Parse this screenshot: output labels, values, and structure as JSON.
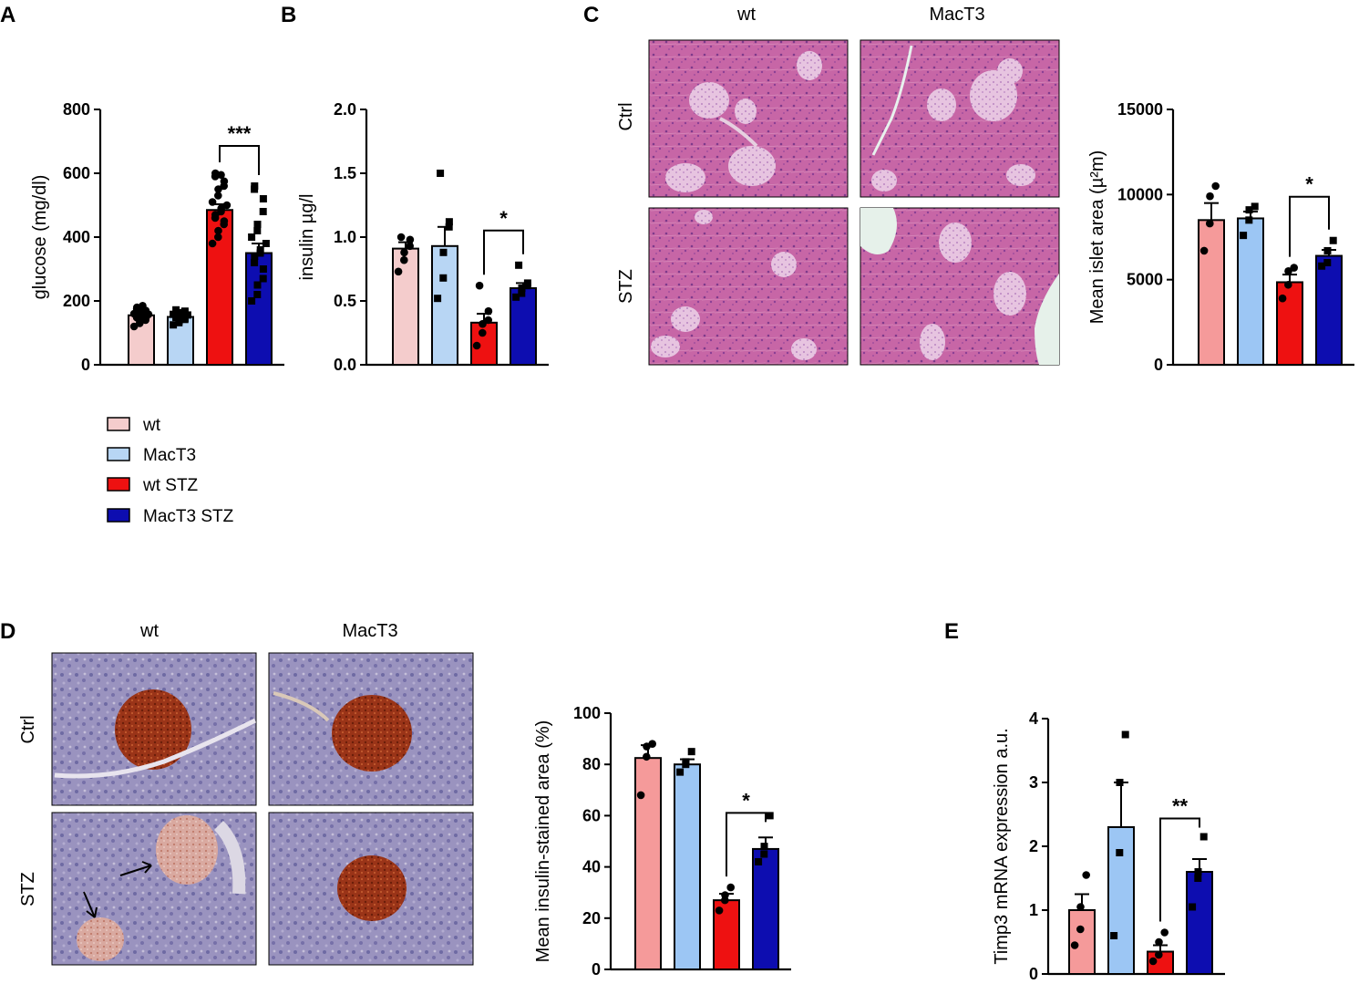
{
  "panels": {
    "A": {
      "letter": "A"
    },
    "B": {
      "letter": "B"
    },
    "C": {
      "letter": "C",
      "col_headers": [
        "wt",
        "MacT3"
      ],
      "row_headers": [
        "Ctrl",
        "STZ"
      ]
    },
    "D": {
      "letter": "D",
      "col_headers": [
        "wt",
        "MacT3"
      ],
      "row_headers": [
        "Ctrl",
        "STZ"
      ]
    },
    "E": {
      "letter": "E"
    }
  },
  "legend": {
    "items": [
      {
        "label": "wt",
        "color": "#f4cccc"
      },
      {
        "label": "MacT3",
        "color": "#b8d6f4"
      },
      {
        "label": "wt STZ",
        "color": "#ee1111"
      },
      {
        "label": "MacT3 STZ",
        "color": "#0d0db0"
      }
    ]
  },
  "colors": {
    "tissue_he": "#c86aa8",
    "tissue_ihc": "#8c84b4",
    "ihc_islet": "#9c3a1e"
  },
  "chart_data": [
    {
      "id": "A",
      "type": "bar",
      "ylabel": "glucose (mg/dl)",
      "ylim": [
        0,
        800
      ],
      "yticks": [
        0,
        200,
        400,
        600,
        800
      ],
      "tick_labels": [
        "0",
        "200",
        "400",
        "600",
        "800"
      ],
      "bars": [
        {
          "group": "wt",
          "value": 155,
          "sem": 5,
          "color": "#f4cccc",
          "marker": "circle",
          "points": [
            120,
            130,
            135,
            140,
            145,
            148,
            150,
            152,
            155,
            158,
            160,
            162,
            165,
            168,
            170,
            175,
            180,
            185
          ]
        },
        {
          "group": "MacT3",
          "value": 150,
          "sem": 5,
          "color": "#b8d6f4",
          "marker": "square",
          "points": [
            125,
            132,
            138,
            142,
            145,
            148,
            150,
            152,
            154,
            156,
            158,
            160,
            163,
            165,
            168,
            172
          ]
        },
        {
          "group": "wt STZ",
          "value": 485,
          "sem": 18,
          "color": "#ee1111",
          "marker": "circle",
          "points": [
            380,
            400,
            420,
            440,
            450,
            460,
            470,
            480,
            490,
            500,
            510,
            530,
            550,
            560,
            575,
            590,
            600,
            595
          ]
        },
        {
          "group": "MacT3 STZ",
          "value": 350,
          "sem": 30,
          "color": "#0d0db0",
          "marker": "square",
          "points": [
            200,
            220,
            250,
            270,
            300,
            320,
            340,
            350,
            360,
            380,
            400,
            420,
            440,
            480,
            520,
            550,
            560
          ]
        }
      ],
      "significance": {
        "between": [
          2,
          3
        ],
        "label": "***"
      }
    },
    {
      "id": "B",
      "type": "bar",
      "ylabel": "insulin µg/l",
      "ylim": [
        0,
        2.0
      ],
      "yticks": [
        0,
        0.5,
        1.0,
        1.5,
        2.0
      ],
      "tick_labels": [
        "0.0",
        "0.5",
        "1.0",
        "1.5",
        "2.0"
      ],
      "bars": [
        {
          "group": "wt",
          "value": 0.91,
          "sem": 0.05,
          "color": "#f4cccc",
          "marker": "circle",
          "points": [
            0.73,
            0.82,
            0.88,
            0.93,
            0.98,
            1.0
          ]
        },
        {
          "group": "MacT3",
          "value": 0.93,
          "sem": 0.15,
          "color": "#b8d6f4",
          "marker": "square",
          "points": [
            0.52,
            0.68,
            0.88,
            1.08,
            1.12,
            1.5
          ]
        },
        {
          "group": "wt STZ",
          "value": 0.33,
          "sem": 0.07,
          "color": "#ee1111",
          "marker": "circle",
          "points": [
            0.15,
            0.25,
            0.32,
            0.35,
            0.42,
            0.62
          ]
        },
        {
          "group": "MacT3 STZ",
          "value": 0.6,
          "sem": 0.04,
          "color": "#0d0db0",
          "marker": "square",
          "points": [
            0.53,
            0.56,
            0.6,
            0.62,
            0.64,
            0.78
          ]
        }
      ],
      "significance": {
        "between": [
          2,
          3
        ],
        "label": "*"
      }
    },
    {
      "id": "C",
      "type": "bar",
      "ylabel": "Mean islet area (µ²m)",
      "ylim": [
        0,
        15000
      ],
      "yticks": [
        0,
        5000,
        10000,
        15000
      ],
      "tick_labels": [
        "0",
        "5000",
        "10000",
        "15000"
      ],
      "bars": [
        {
          "group": "wt",
          "value": 8500,
          "sem": 1000,
          "color": "#f59a9a",
          "marker": "circle",
          "points": [
            6700,
            8300,
            9900,
            10500
          ]
        },
        {
          "group": "MacT3",
          "value": 8600,
          "sem": 400,
          "color": "#9cc6f4",
          "marker": "square",
          "points": [
            7600,
            8500,
            9100,
            9300
          ]
        },
        {
          "group": "wt STZ",
          "value": 4850,
          "sem": 450,
          "color": "#ee1111",
          "marker": "circle",
          "points": [
            3900,
            4700,
            5500,
            5700
          ]
        },
        {
          "group": "MacT3 STZ",
          "value": 6400,
          "sem": 350,
          "color": "#0d0db0",
          "marker": "square",
          "points": [
            5800,
            6000,
            6700,
            7300
          ]
        }
      ],
      "significance": {
        "between": [
          2,
          3
        ],
        "label": "*"
      }
    },
    {
      "id": "D",
      "type": "bar",
      "ylabel": "Mean insulin-stained area (%)",
      "ylim": [
        0,
        100
      ],
      "yticks": [
        0,
        20,
        40,
        60,
        80,
        100
      ],
      "tick_labels": [
        "0",
        "20",
        "40",
        "60",
        "80",
        "100"
      ],
      "bars": [
        {
          "group": "wt",
          "value": 82.5,
          "sem": 5,
          "color": "#f59a9a",
          "marker": "circle",
          "points": [
            68,
            83,
            87,
            88
          ]
        },
        {
          "group": "MacT3",
          "value": 80,
          "sem": 2,
          "color": "#9cc6f4",
          "marker": "square",
          "points": [
            77,
            80,
            81,
            85
          ]
        },
        {
          "group": "wt STZ",
          "value": 27,
          "sem": 2.5,
          "color": "#ee1111",
          "marker": "circle",
          "points": [
            23,
            27,
            29,
            32
          ]
        },
        {
          "group": "MacT3 STZ",
          "value": 47,
          "sem": 4.5,
          "color": "#0d0db0",
          "marker": "square",
          "points": [
            42,
            45,
            48,
            60
          ]
        }
      ],
      "significance": {
        "between": [
          2,
          3
        ],
        "label": "*"
      }
    },
    {
      "id": "E",
      "type": "bar",
      "ylabel": "Timp3 mRNA expression a.u.",
      "ylim": [
        0,
        4
      ],
      "yticks": [
        0,
        1,
        2,
        3,
        4
      ],
      "tick_labels": [
        "0",
        "1",
        "2",
        "3",
        "4"
      ],
      "bars": [
        {
          "group": "wt",
          "value": 1.0,
          "sem": 0.25,
          "color": "#f59a9a",
          "marker": "circle",
          "points": [
            0.45,
            0.7,
            1.05,
            1.55
          ]
        },
        {
          "group": "MacT3",
          "value": 2.3,
          "sem": 0.7,
          "color": "#9cc6f4",
          "marker": "square",
          "points": [
            0.6,
            1.9,
            3.0,
            3.75
          ]
        },
        {
          "group": "wt STZ",
          "value": 0.35,
          "sem": 0.1,
          "color": "#ee1111",
          "marker": "circle",
          "points": [
            0.2,
            0.3,
            0.5,
            0.65
          ]
        },
        {
          "group": "MacT3 STZ",
          "value": 1.6,
          "sem": 0.2,
          "color": "#0d0db0",
          "marker": "square",
          "points": [
            1.05,
            1.5,
            1.6,
            2.15
          ]
        }
      ],
      "significance": {
        "between": [
          2,
          3
        ],
        "label": "**"
      }
    }
  ]
}
